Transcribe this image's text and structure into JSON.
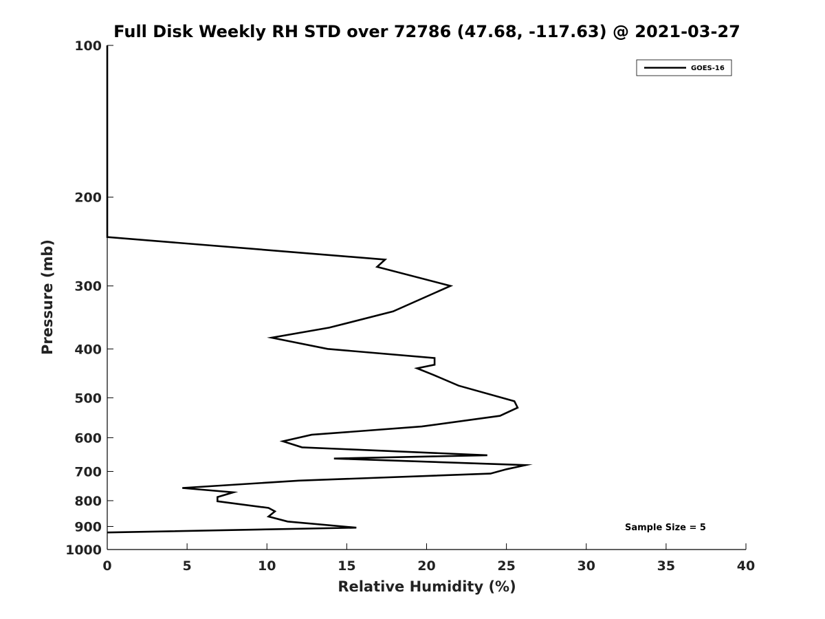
{
  "chart_data": {
    "type": "line",
    "title": "Full Disk Weekly RH STD over 72786 (47.68, -117.63) @ 2021-03-27",
    "xlabel": "Relative Humidity (%)",
    "ylabel": "Pressure (mb)",
    "xlim": [
      0,
      40
    ],
    "ylim": [
      1000,
      100
    ],
    "yscale": "log",
    "grid": false,
    "x_ticks": [
      0,
      5,
      10,
      15,
      20,
      25,
      30,
      35,
      40
    ],
    "y_ticks": [
      100,
      200,
      300,
      400,
      500,
      600,
      700,
      800,
      900,
      1000
    ],
    "legend": {
      "position": "top-right",
      "entries": [
        "GOES-16"
      ]
    },
    "annotation": "Sample Size = 5",
    "series": [
      {
        "name": "GOES-16",
        "color": "#000000",
        "x": [
          0,
          0,
          0,
          0,
          17.4,
          16.9,
          21.5,
          17.9,
          13.9,
          10.3,
          13.8,
          20.5,
          20.5,
          19.4,
          20.4,
          22.0,
          25.5,
          25.7,
          24.6,
          19.7,
          12.8,
          11.0,
          12.2,
          23.8,
          14.2,
          26.2,
          25.0,
          24.0,
          12.0,
          4.7,
          7.9,
          6.9,
          6.9,
          10.1,
          10.5,
          10.1,
          11.3,
          15.6,
          0
        ],
        "y": [
          100,
          150,
          200,
          240,
          266,
          275,
          300,
          337,
          363,
          380,
          400,
          417,
          430,
          437,
          450,
          473,
          508,
          523,
          543,
          570,
          592,
          610,
          627,
          650,
          660,
          680,
          693,
          707,
          730,
          755,
          770,
          787,
          802,
          827,
          840,
          860,
          880,
          905,
          925
        ]
      }
    ]
  }
}
